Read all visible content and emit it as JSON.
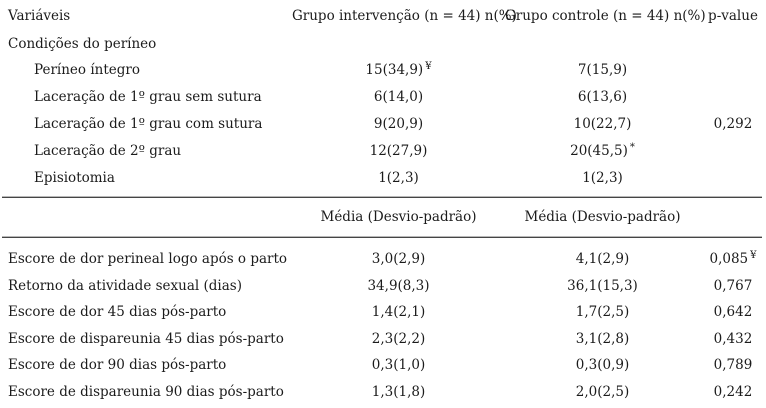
{
  "table": {
    "header": {
      "variables": "Variáveis",
      "intervention": "Grupo intervenção (n = 44) n(%)",
      "control": "Grupo controle (n = 44) n(%)",
      "pvalue": "p-value"
    },
    "section_perineum": {
      "title": "Condições do períneo",
      "rows": [
        {
          "label": "Períneo íntegro",
          "intervention": "15(34,9)",
          "intervention_sup": "¥",
          "control": "7(15,9)"
        },
        {
          "label": "Laceração de 1º grau sem sutura",
          "intervention": "6(14,0)",
          "control": "6(13,6)"
        },
        {
          "label": "Laceração de 1º grau com sutura",
          "intervention": "9(20,9)",
          "control": "10(22,7)",
          "pvalue": "0,292"
        },
        {
          "label": "Laceração de 2º grau",
          "intervention": "12(27,9)",
          "control": "20(45,5)",
          "control_sup": "*"
        },
        {
          "label": "Episiotomia",
          "intervention": "1(2,3)",
          "control": "1(2,3)"
        }
      ]
    },
    "subheader": {
      "intervention": "Média (Desvio-padrão)",
      "control": "Média (Desvio-padrão)"
    },
    "section_scores": {
      "rows": [
        {
          "label": "Escore de dor perineal logo após o parto",
          "intervention": "3,0(2,9)",
          "control": "4,1(2,9)",
          "pvalue": "0,085",
          "pvalue_sup": "¥"
        },
        {
          "label": "Retorno da atividade sexual (dias)",
          "intervention": "34,9(8,3)",
          "control": "36,1(15,3)",
          "pvalue": "0,767"
        },
        {
          "label": "Escore de dor 45 dias pós-parto",
          "intervention": "1,4(2,1)",
          "control": "1,7(2,5)",
          "pvalue": "0,642"
        },
        {
          "label": "Escore de dispareunia 45 dias pós-parto",
          "intervention": "2,3(2,2)",
          "control": "3,1(2,8)",
          "pvalue": "0,432"
        },
        {
          "label": "Escore de dor 90 dias pós-parto",
          "intervention": "0,3(1,0)",
          "control": "0,3(0,9)",
          "pvalue": "0,789"
        },
        {
          "label": "Escore de dispareunia 90 dias pós-parto",
          "intervention": "1,3(1,8)",
          "control": "2,0(2,5)",
          "pvalue": "0,242"
        }
      ]
    }
  }
}
